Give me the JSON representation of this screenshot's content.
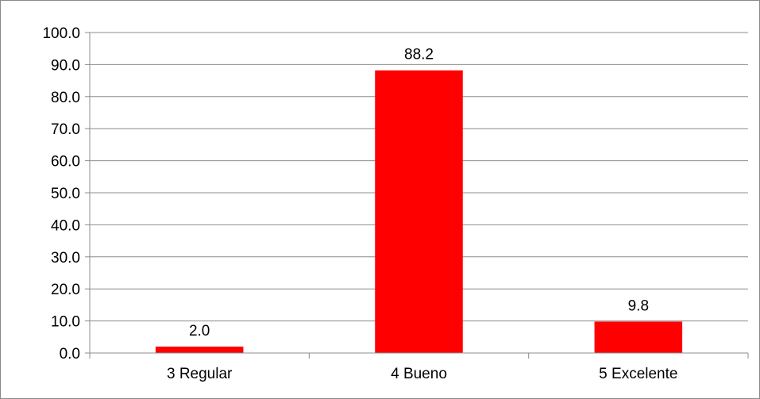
{
  "chart_data": {
    "type": "bar",
    "categories": [
      "3 Regular",
      "4 Bueno",
      "5 Excelente"
    ],
    "values": [
      2.0,
      88.2,
      9.8
    ],
    "data_labels": [
      "2.0",
      "88.2",
      "9.8"
    ],
    "y_ticks": [
      "0.0",
      "10.0",
      "20.0",
      "30.0",
      "40.0",
      "50.0",
      "60.0",
      "70.0",
      "80.0",
      "90.0",
      "100.0"
    ],
    "ylim": [
      0,
      100
    ],
    "grid": true,
    "legend": "none",
    "title": "",
    "xlabel": "",
    "ylabel": "",
    "colors": {
      "bar": "#ff0000",
      "grid": "#8c8c8c",
      "axis": "#8c8c8c",
      "border": "#8a8a8a"
    }
  }
}
